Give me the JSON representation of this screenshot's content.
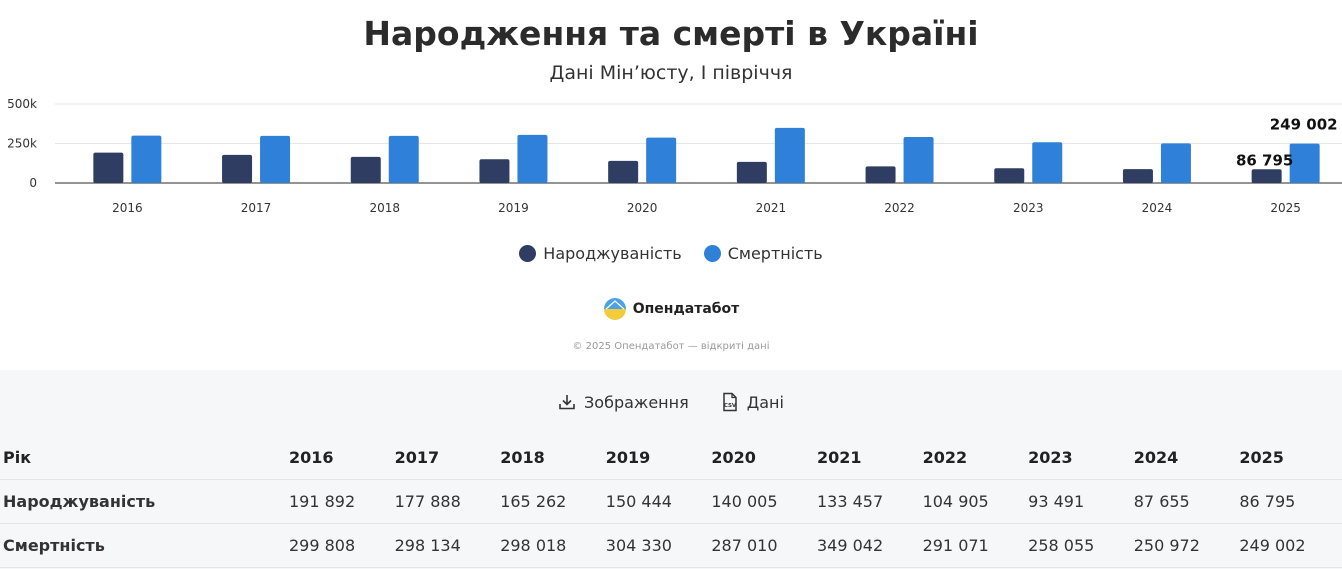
{
  "chart_data": {
    "type": "bar",
    "title": "Народження та смерті в Україні",
    "subtitle": "Дані Мін’юсту, І півріччя",
    "categories": [
      "2016",
      "2017",
      "2018",
      "2019",
      "2020",
      "2021",
      "2022",
      "2023",
      "2024",
      "2025"
    ],
    "series": [
      {
        "name": "Народжуваність",
        "color": "#2f3d63",
        "values": [
          191892,
          177888,
          165262,
          150444,
          140005,
          133457,
          104905,
          93491,
          87655,
          86795
        ]
      },
      {
        "name": "Смертність",
        "color": "#2f80d9",
        "values": [
          299808,
          298134,
          298018,
          304330,
          287010,
          349042,
          291071,
          258055,
          250972,
          249002
        ]
      }
    ],
    "ylim": [
      0,
      500000
    ],
    "yticks": [
      {
        "value": 0,
        "label": "0"
      },
      {
        "value": 250000,
        "label": "250k"
      },
      {
        "value": 500000,
        "label": "500k"
      }
    ],
    "data_labels": [
      {
        "series": 0,
        "index": 9,
        "text": "86 795"
      },
      {
        "series": 1,
        "index": 9,
        "text": "249 002"
      }
    ],
    "grid": true,
    "legend_position": "bottom"
  },
  "brand": {
    "name": "Опендатабот",
    "copyright": "© 2025 Опендатабот — відкриті дані"
  },
  "actions": {
    "image_label": "Зображення",
    "data_label": "Дані"
  },
  "table": {
    "header_label": "Рік",
    "years": [
      "2016",
      "2017",
      "2018",
      "2019",
      "2020",
      "2021",
      "2022",
      "2023",
      "2024",
      "2025"
    ],
    "rows": [
      {
        "label": "Народжуваність",
        "values": [
          "191 892",
          "177 888",
          "165 262",
          "150 444",
          "140 005",
          "133 457",
          "104 905",
          "93 491",
          "87 655",
          "86 795"
        ]
      },
      {
        "label": "Смертність",
        "values": [
          "299 808",
          "298 134",
          "298 018",
          "304 330",
          "287 010",
          "349 042",
          "291 071",
          "258 055",
          "250 972",
          "249 002"
        ]
      }
    ]
  }
}
